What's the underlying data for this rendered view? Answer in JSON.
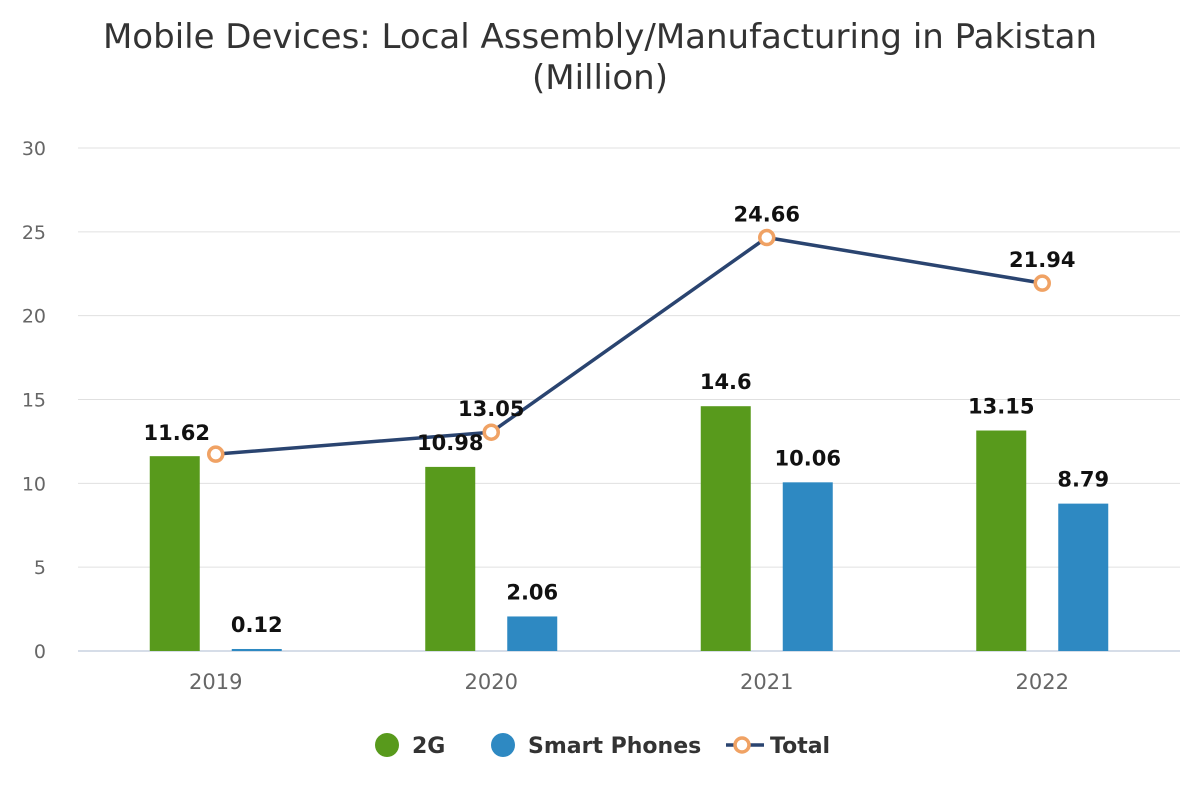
{
  "chart_data": {
    "type": "bar",
    "title_lines": [
      "Mobile Devices: Local Assembly/Manufacturing in Pakistan",
      "(Million)"
    ],
    "categories": [
      "2019",
      "2020",
      "2021",
      "2022"
    ],
    "ylim": [
      0,
      30
    ],
    "yticks": [
      0,
      5,
      10,
      15,
      20,
      25,
      30
    ],
    "grid": true,
    "legend_position": "bottom",
    "series": [
      {
        "name": "2G",
        "type": "bar",
        "color": "#589a1c",
        "values": [
          11.62,
          10.98,
          14.6,
          13.15
        ],
        "labels": [
          "11.62",
          "10.98",
          "14.6",
          "13.15"
        ]
      },
      {
        "name": "Smart Phones",
        "type": "bar",
        "color": "#2e89c2",
        "values": [
          0.12,
          2.06,
          10.06,
          8.79
        ],
        "labels": [
          "0.12",
          "2.06",
          "10.06",
          "8.79"
        ]
      },
      {
        "name": "Total",
        "type": "line",
        "color": "#2a4470",
        "marker_color": "#f0a264",
        "values": [
          11.74,
          13.05,
          24.66,
          21.94
        ],
        "labels": [
          "",
          "13.05",
          "24.66",
          "21.94"
        ]
      }
    ]
  }
}
